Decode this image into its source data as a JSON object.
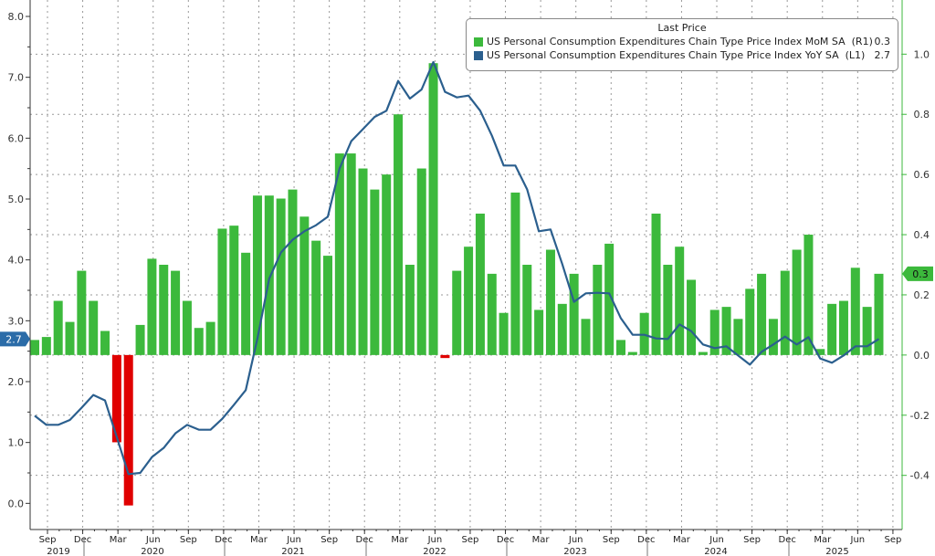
{
  "chart_data": {
    "type": "bar+line",
    "legend": {
      "title": "Last Price",
      "placement": "top-right",
      "entries": [
        {
          "name": "US Personal Consumption Expenditures Chain Type Price Index MoM SA",
          "axis": "(R1)",
          "last": "0.3",
          "color": "#3cb93c"
        },
        {
          "name": "US Personal Consumption Expenditures Chain Type Price Index YoY SA",
          "axis": "(L1)",
          "last": "2.7",
          "color": "#2b5f8e"
        }
      ]
    },
    "x": {
      "start": "2019-08",
      "end": "2025-08",
      "frequency": "monthly",
      "tick_labels": [
        "Sep",
        "Dec",
        "Mar",
        "Jun",
        "Sep",
        "Dec",
        "Mar",
        "Jun",
        "Sep",
        "Dec",
        "Mar",
        "Jun",
        "Sep",
        "Dec",
        "Mar",
        "Jun",
        "Sep",
        "Dec",
        "Mar",
        "Jun",
        "Sep",
        "Dec",
        "Mar",
        "Jun",
        "Sep"
      ],
      "year_labels": [
        "2019",
        "2020",
        "2021",
        "2022",
        "2023",
        "2024",
        "2025"
      ]
    },
    "left_axis": {
      "ylim": [
        -0.43,
        8.27
      ],
      "ticks": [
        "0.0",
        "1.0",
        "2.0",
        "3.0",
        "4.0",
        "5.0",
        "6.0",
        "7.0",
        "8.0"
      ],
      "last_value_tag": "2.7"
    },
    "right_axis": {
      "ylim": [
        -0.58,
        1.18
      ],
      "ticks": [
        "-0.4",
        "-0.2",
        "0.0",
        "0.2",
        "0.4",
        "0.6",
        "0.8",
        "1.0"
      ],
      "last_value_tag": "0.3"
    },
    "grid": true,
    "series": [
      {
        "name": "US Personal Consumption Expenditures Chain Type Price Index MoM SA",
        "type": "bar",
        "axis": "right",
        "positive_color": "#3cb93c",
        "negative_color": "#e00000",
        "values": [
          0.05,
          0.06,
          0.18,
          0.11,
          0.28,
          0.18,
          0.08,
          -0.29,
          -0.5,
          0.1,
          0.32,
          0.3,
          0.28,
          0.18,
          0.09,
          0.11,
          0.42,
          0.43,
          0.34,
          0.53,
          0.53,
          0.52,
          0.55,
          0.46,
          0.38,
          0.33,
          0.67,
          0.67,
          0.62,
          0.55,
          0.6,
          0.8,
          0.3,
          0.62,
          0.97,
          -0.01,
          0.28,
          0.36,
          0.47,
          0.27,
          0.14,
          0.54,
          0.3,
          0.15,
          0.35,
          0.17,
          0.27,
          0.12,
          0.3,
          0.37,
          0.05,
          0.01,
          0.14,
          0.47,
          0.3,
          0.36,
          0.25,
          0.01,
          0.15,
          0.16,
          0.12,
          0.22,
          0.27,
          0.12,
          0.28,
          0.35,
          0.4,
          0.02,
          0.17,
          0.18,
          0.29,
          0.16,
          0.27
        ]
      },
      {
        "name": "US Personal Consumption Expenditures Chain Type Price Index YoY SA",
        "type": "line",
        "axis": "left",
        "color": "#2b5f8e",
        "values": [
          1.44,
          1.29,
          1.29,
          1.37,
          1.57,
          1.78,
          1.69,
          1.09,
          0.48,
          0.5,
          0.76,
          0.91,
          1.15,
          1.29,
          1.21,
          1.21,
          1.39,
          1.62,
          1.86,
          2.71,
          3.69,
          4.12,
          4.33,
          4.47,
          4.57,
          4.71,
          5.5,
          5.95,
          6.15,
          6.35,
          6.45,
          6.94,
          6.65,
          6.8,
          7.25,
          6.76,
          6.67,
          6.7,
          6.45,
          6.04,
          5.55,
          5.55,
          5.16,
          4.47,
          4.5,
          3.93,
          3.31,
          3.45,
          3.46,
          3.45,
          3.04,
          2.77,
          2.77,
          2.71,
          2.7,
          2.94,
          2.83,
          2.61,
          2.55,
          2.58,
          2.43,
          2.28,
          2.49,
          2.61,
          2.74,
          2.61,
          2.73,
          2.38,
          2.31,
          2.43,
          2.58,
          2.58,
          2.7
        ]
      }
    ]
  }
}
